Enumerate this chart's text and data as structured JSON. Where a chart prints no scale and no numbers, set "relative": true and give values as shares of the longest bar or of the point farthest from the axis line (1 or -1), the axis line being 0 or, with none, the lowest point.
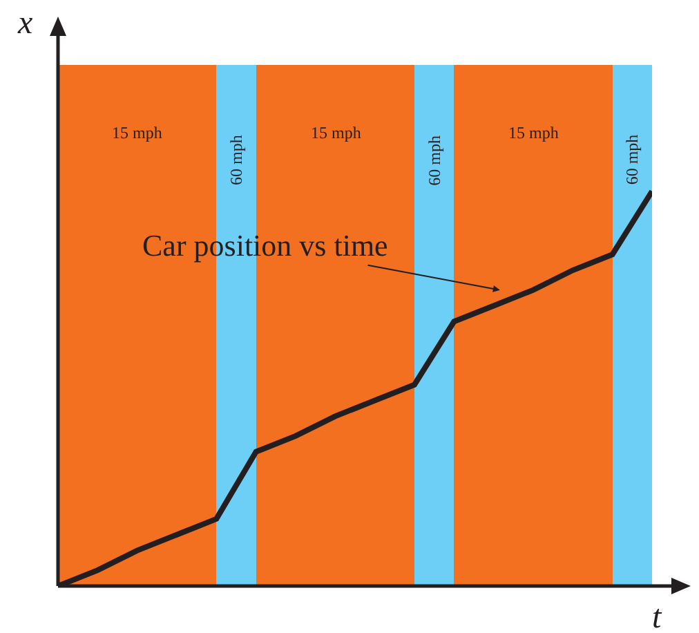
{
  "chart_data": {
    "type": "line",
    "relative": true,
    "xlabel": "t",
    "ylabel": "x",
    "categories": [
      null,
      null,
      null,
      null,
      null,
      null,
      null,
      null,
      null,
      null,
      null,
      null,
      null,
      null,
      null,
      null
    ],
    "series": [
      {
        "color": "#231f20",
        "values": [
          0,
          0.04,
          0.09,
          0.13,
          0.17,
          0.34,
          0.38,
          0.43,
          0.47,
          0.51,
          0.67,
          0.71,
          0.75,
          0.8,
          0.84,
          1
        ]
      }
    ],
    "annotations": [
      "15 mph",
      "60 mph",
      "15 mph",
      "60 mph",
      "15 mph",
      "60 mph",
      "Car position vs time"
    ],
    "grid": false,
    "marker": "none",
    "line_style": "solid"
  }
}
